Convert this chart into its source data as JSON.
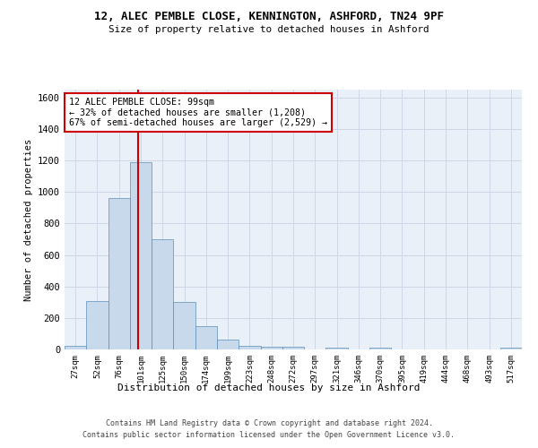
{
  "title1": "12, ALEC PEMBLE CLOSE, KENNINGTON, ASHFORD, TN24 9PF",
  "title2": "Size of property relative to detached houses in Ashford",
  "xlabel": "Distribution of detached houses by size in Ashford",
  "ylabel": "Number of detached properties",
  "footer1": "Contains HM Land Registry data © Crown copyright and database right 2024.",
  "footer2": "Contains public sector information licensed under the Open Government Licence v3.0.",
  "annotation_line1": "12 ALEC PEMBLE CLOSE: 99sqm",
  "annotation_line2": "← 32% of detached houses are smaller (1,208)",
  "annotation_line3": "67% of semi-detached houses are larger (2,529) →",
  "property_size_sqm": 99,
  "bar_color": "#c9d9ec",
  "bar_edge_color": "#5b8db8",
  "redline_color": "#cc0000",
  "annotation_box_color": "#cc0000",
  "grid_color": "#d0d8e8",
  "bg_color": "#eaf0f8",
  "categories": [
    "27sqm",
    "52sqm",
    "76sqm",
    "101sqm",
    "125sqm",
    "150sqm",
    "174sqm",
    "199sqm",
    "223sqm",
    "248sqm",
    "272sqm",
    "297sqm",
    "321sqm",
    "346sqm",
    "370sqm",
    "395sqm",
    "419sqm",
    "444sqm",
    "468sqm",
    "493sqm",
    "517sqm"
  ],
  "values": [
    25,
    310,
    960,
    1190,
    700,
    300,
    150,
    65,
    25,
    15,
    15,
    0,
    10,
    0,
    10,
    0,
    0,
    0,
    0,
    0,
    10
  ],
  "ylim": [
    0,
    1650
  ],
  "yticks": [
    0,
    200,
    400,
    600,
    800,
    1000,
    1200,
    1400,
    1600
  ]
}
